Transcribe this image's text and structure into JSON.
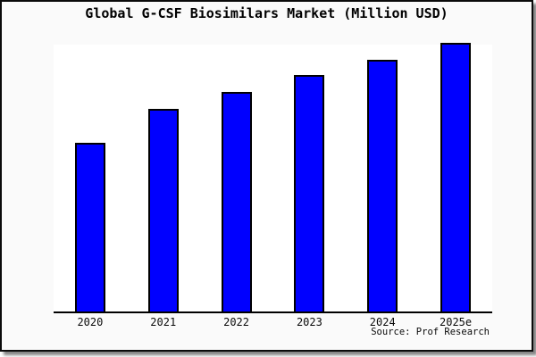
{
  "window": {
    "background": "#ffffff",
    "frame_background": "#fafafa",
    "frame_border_color": "#0a0a0a",
    "shadow_color": "#858585"
  },
  "chart_data": {
    "type": "bar",
    "title": "Global G-CSF Biosimilars Market (Million USD)",
    "units": "Million USD",
    "categories": [
      "2020",
      "2021",
      "2022",
      "2023",
      "2024",
      "2025e"
    ],
    "values": [
      62.6,
      75.2,
      81.7,
      87.9,
      93.8,
      100
    ],
    "values_estimated": true,
    "xlabel": "",
    "ylabel": "",
    "ylim": [
      0,
      100
    ],
    "grid": false,
    "legend": false,
    "y_axis_labels_visible": false,
    "bar_fill": "#0000ff",
    "bar_edge": "#000000",
    "plot_background": "#ffffff",
    "axis_color": "#000000",
    "source": "Source: Prof Research"
  }
}
